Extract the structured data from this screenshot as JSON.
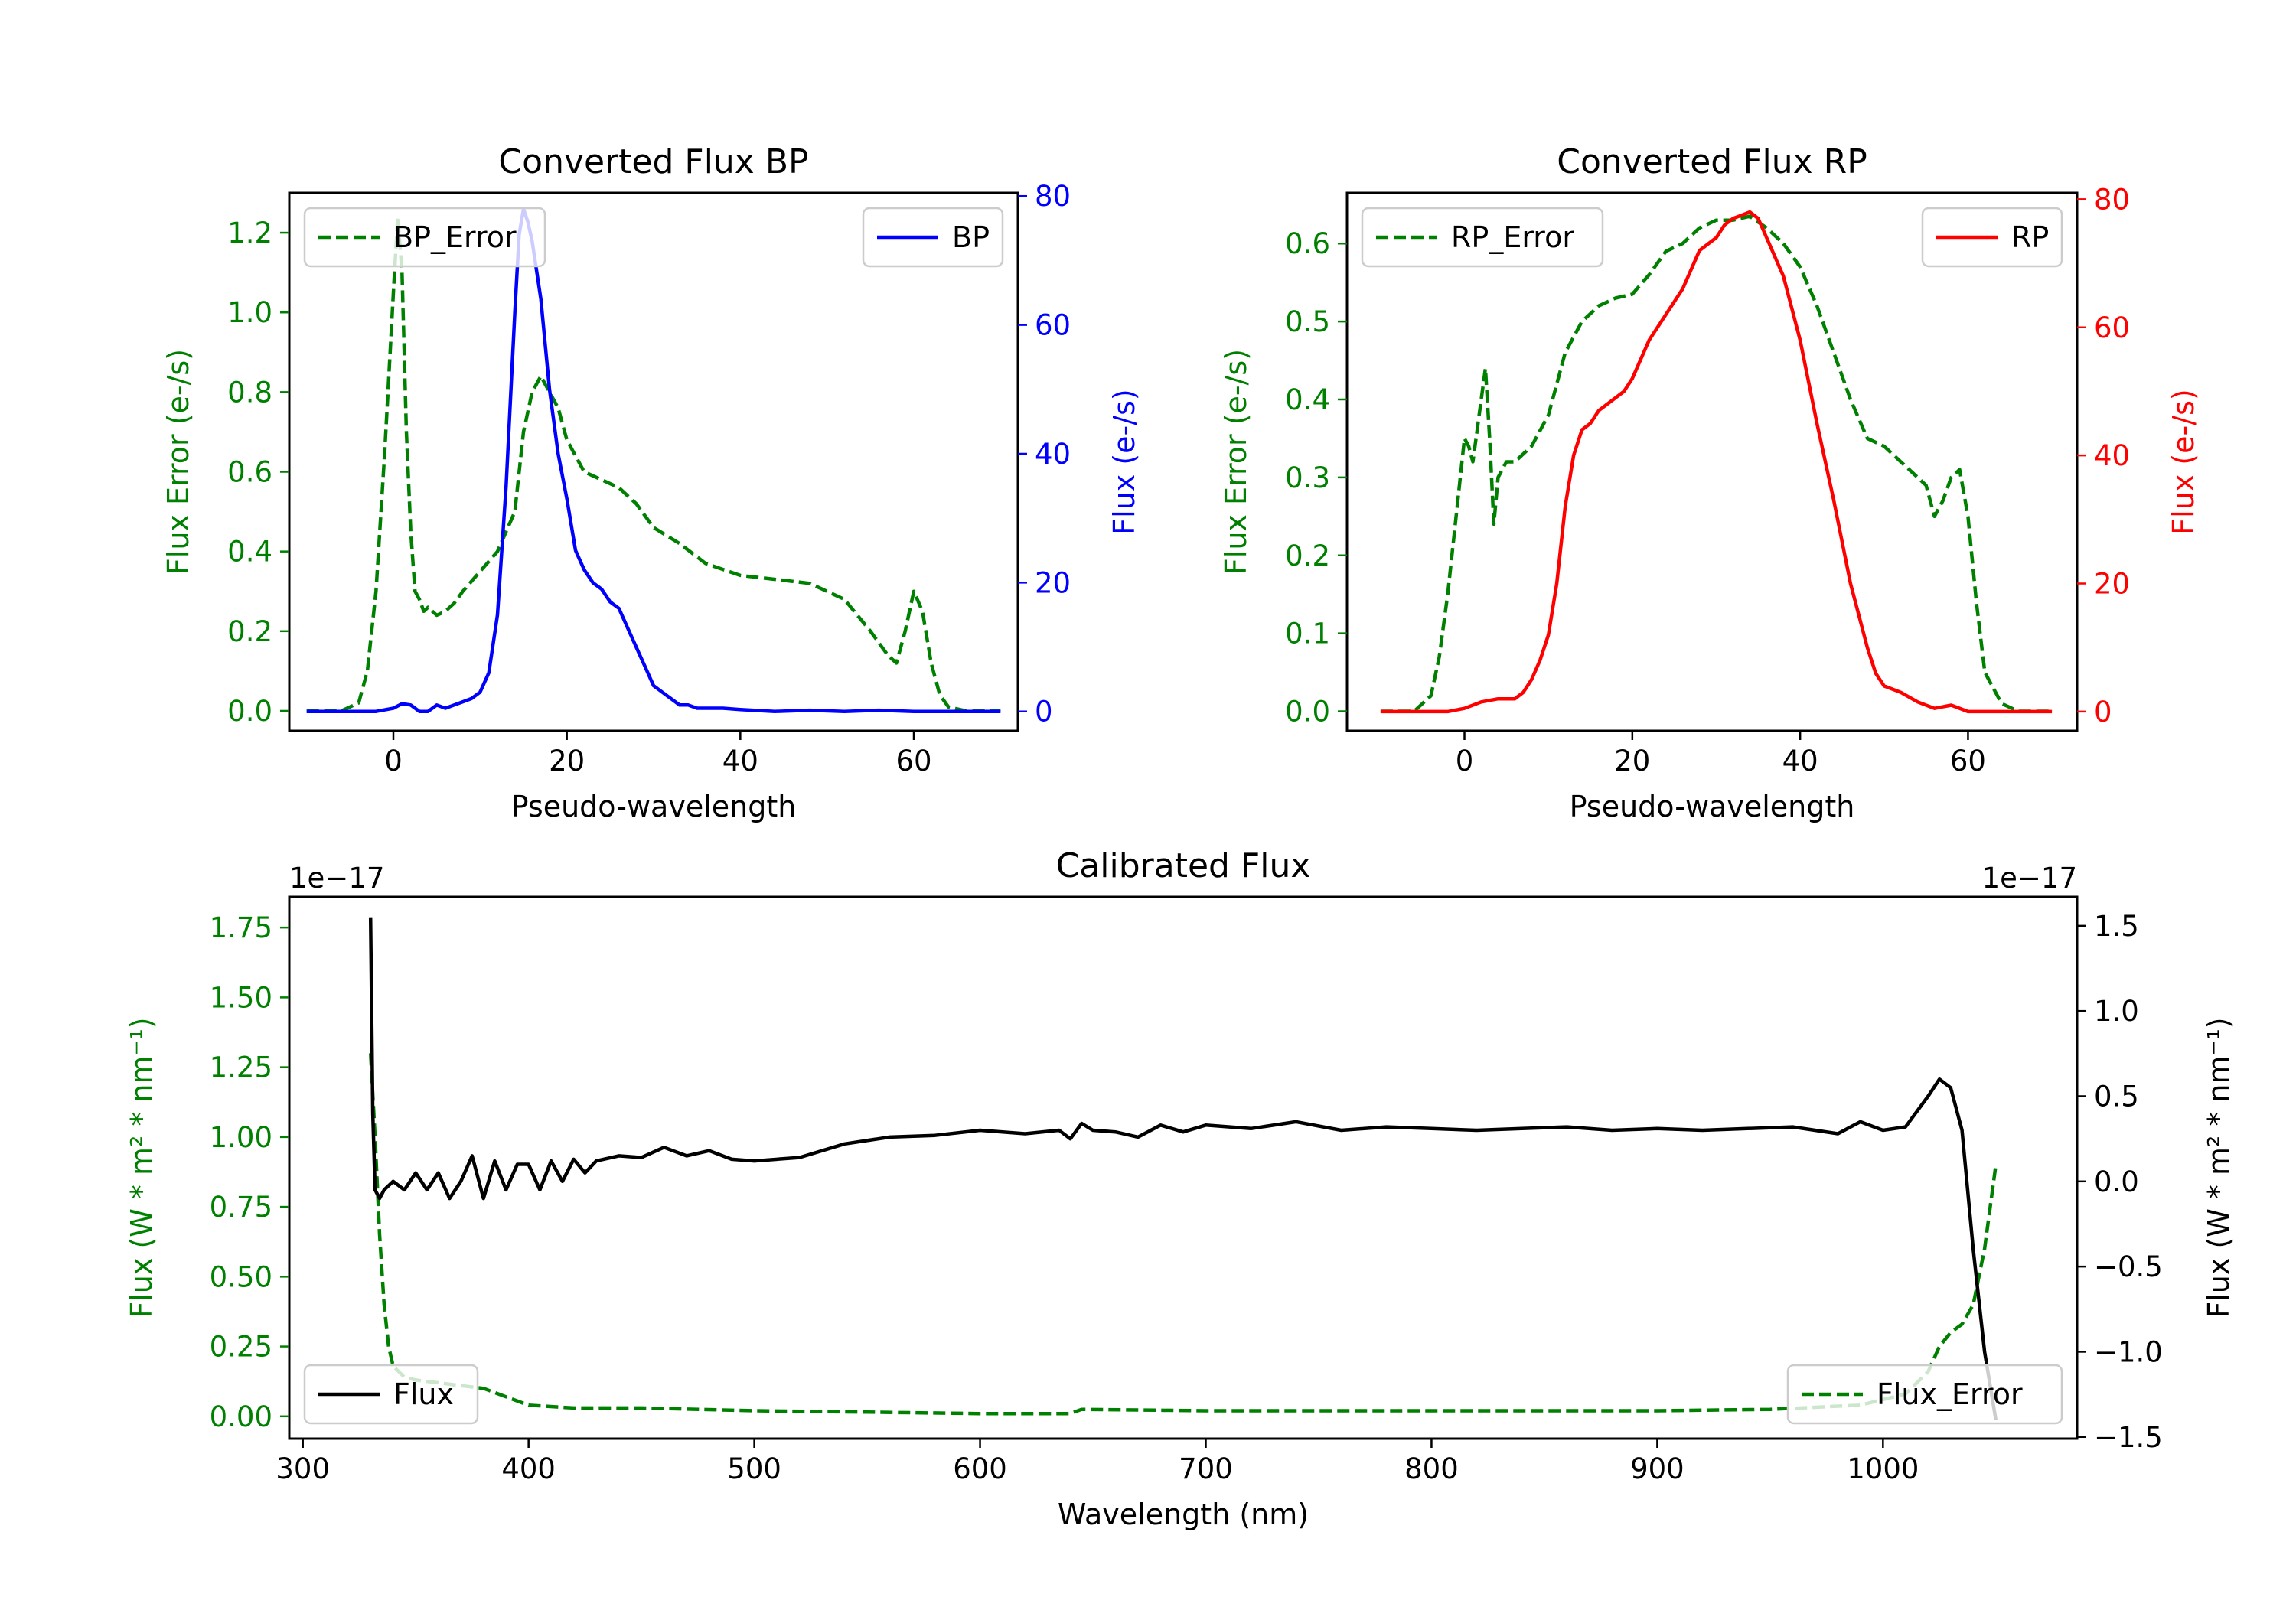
{
  "colors": {
    "green": "#008000",
    "blue": "#0000ff",
    "red": "#ff0000",
    "black": "#000000"
  },
  "chart_data": [
    {
      "id": "bp",
      "type": "line",
      "title": "Converted Flux BP",
      "xlabel": "Pseudo-wavelength",
      "ylabel_left": "Flux Error (e-/s)",
      "ylabel_right": "Flux (e-/s)",
      "xlim": [
        -12,
        72
      ],
      "ylim_left": [
        -0.05,
        1.3
      ],
      "ylim_right": [
        -3,
        80.5
      ],
      "xticks": [
        0,
        20,
        40,
        60
      ],
      "xtick_labels": [
        "0",
        "20",
        "40",
        "60"
      ],
      "yticks_left": [
        0.0,
        0.2,
        0.4,
        0.6,
        0.8,
        1.0,
        1.2
      ],
      "ytick_labels_left": [
        "0.0",
        "0.2",
        "0.4",
        "0.6",
        "0.8",
        "1.0",
        "1.2"
      ],
      "yticks_right": [
        0,
        20,
        40,
        60,
        80
      ],
      "ytick_labels_right": [
        "0",
        "20",
        "40",
        "60",
        "80"
      ],
      "left_axis_color": "#008000",
      "right_axis_color": "#0000ff",
      "legend_left": {
        "label": "BP_Error",
        "position": "upper left"
      },
      "legend_right": {
        "label": "BP",
        "position": "upper right"
      },
      "series": [
        {
          "name": "BP_Error",
          "axis": "left",
          "style": "dashed",
          "color": "#008000",
          "x": [
            -10,
            -6,
            -4,
            -3,
            -2,
            -1,
            0,
            0.5,
            1,
            1.5,
            2,
            2.5,
            3,
            3.5,
            4,
            5,
            6,
            7,
            8,
            10,
            12,
            14,
            15,
            16,
            17,
            18,
            19,
            20,
            22,
            24,
            26,
            28,
            30,
            33,
            36,
            40,
            44,
            48,
            52,
            55,
            57,
            58,
            59,
            60,
            61,
            62,
            63,
            64,
            66,
            68,
            70
          ],
          "y": [
            0.0,
            0.0,
            0.02,
            0.1,
            0.3,
            0.65,
            1.05,
            1.24,
            1.1,
            0.7,
            0.45,
            0.3,
            0.28,
            0.25,
            0.26,
            0.24,
            0.25,
            0.27,
            0.3,
            0.35,
            0.4,
            0.5,
            0.7,
            0.8,
            0.84,
            0.8,
            0.76,
            0.68,
            0.6,
            0.58,
            0.56,
            0.52,
            0.46,
            0.42,
            0.37,
            0.34,
            0.33,
            0.32,
            0.28,
            0.2,
            0.14,
            0.12,
            0.2,
            0.3,
            0.25,
            0.12,
            0.04,
            0.01,
            0.0,
            0.0,
            0.0
          ]
        },
        {
          "name": "BP",
          "axis": "right",
          "style": "solid",
          "color": "#0000ff",
          "x": [
            -10,
            -6,
            -4,
            -2,
            0,
            1,
            2,
            3,
            4,
            5,
            6,
            7,
            8,
            9,
            10,
            11,
            12,
            13,
            14,
            14.5,
            15,
            15.5,
            16,
            17,
            18,
            19,
            20,
            21,
            22,
            23,
            24,
            25,
            26,
            27,
            28,
            29,
            30,
            31,
            32,
            33,
            34,
            35,
            36,
            38,
            40,
            44,
            48,
            52,
            56,
            60,
            64,
            66,
            70
          ],
          "y": [
            0,
            0,
            0,
            0,
            0.5,
            1.2,
            1,
            0,
            0,
            1,
            0.5,
            1,
            1.5,
            2,
            3,
            6,
            15,
            35,
            62,
            74,
            78,
            76,
            73,
            64,
            50,
            40,
            33,
            25,
            22,
            20,
            19,
            17,
            16,
            13,
            10,
            7,
            4,
            3,
            2,
            1,
            1,
            0.5,
            0.5,
            0.5,
            0.3,
            0,
            0.2,
            0,
            0.2,
            0,
            0,
            0,
            0
          ]
        }
      ]
    },
    {
      "id": "rp",
      "type": "line",
      "title": "Converted Flux RP",
      "xlabel": "Pseudo-wavelength",
      "ylabel_left": "Flux Error (e-/s)",
      "ylabel_right": "Flux (e-/s)",
      "xlim": [
        -14,
        73
      ],
      "ylim_left": [
        -0.025,
        0.665
      ],
      "ylim_right": [
        -3,
        81
      ],
      "xticks": [
        0,
        20,
        40,
        60
      ],
      "xtick_labels": [
        "0",
        "20",
        "40",
        "60"
      ],
      "yticks_left": [
        0.0,
        0.1,
        0.2,
        0.3,
        0.4,
        0.5,
        0.6
      ],
      "ytick_labels_left": [
        "0.0",
        "0.1",
        "0.2",
        "0.3",
        "0.4",
        "0.5",
        "0.6"
      ],
      "yticks_right": [
        0,
        20,
        40,
        60,
        80
      ],
      "ytick_labels_right": [
        "0",
        "20",
        "40",
        "60",
        "80"
      ],
      "left_axis_color": "#008000",
      "right_axis_color": "#ff0000",
      "legend_left": {
        "label": "RP_Error",
        "position": "upper left"
      },
      "legend_right": {
        "label": "RP",
        "position": "upper right"
      },
      "series": [
        {
          "name": "RP_Error",
          "axis": "left",
          "style": "dashed",
          "color": "#008000",
          "x": [
            -10,
            -6,
            -4,
            -3,
            -2,
            -1,
            0,
            0.5,
            1,
            1.5,
            2,
            2.5,
            3,
            3.5,
            4,
            5,
            6,
            8,
            10,
            12,
            14,
            16,
            18,
            20,
            22,
            24,
            26,
            28,
            30,
            32,
            34,
            36,
            38,
            40,
            42,
            44,
            46,
            48,
            50,
            52,
            54,
            55,
            56,
            57,
            58,
            59,
            60,
            61,
            62,
            64,
            66,
            70
          ],
          "y": [
            0.0,
            0.0,
            0.02,
            0.07,
            0.15,
            0.25,
            0.35,
            0.34,
            0.32,
            0.36,
            0.4,
            0.44,
            0.35,
            0.24,
            0.3,
            0.32,
            0.32,
            0.34,
            0.38,
            0.46,
            0.5,
            0.52,
            0.53,
            0.535,
            0.56,
            0.59,
            0.6,
            0.62,
            0.63,
            0.63,
            0.635,
            0.62,
            0.6,
            0.57,
            0.52,
            0.46,
            0.4,
            0.35,
            0.34,
            0.32,
            0.3,
            0.29,
            0.25,
            0.27,
            0.3,
            0.31,
            0.25,
            0.14,
            0.05,
            0.01,
            0.0,
            0.0
          ]
        },
        {
          "name": "RP",
          "axis": "right",
          "style": "solid",
          "color": "#ff0000",
          "x": [
            -10,
            -6,
            -4,
            -2,
            0,
            2,
            4,
            6,
            7,
            8,
            9,
            10,
            11,
            12,
            13,
            14,
            15,
            16,
            17,
            18,
            19,
            20,
            22,
            24,
            26,
            28,
            30,
            31,
            32,
            33,
            34,
            35,
            36,
            38,
            40,
            42,
            44,
            46,
            48,
            49,
            50,
            52,
            54,
            56,
            58,
            60,
            64,
            70
          ],
          "y": [
            0,
            0,
            0,
            0,
            0.5,
            1.5,
            2,
            2,
            3,
            5,
            8,
            12,
            20,
            32,
            40,
            44,
            45,
            47,
            48,
            49,
            50,
            52,
            58,
            62,
            66,
            72,
            74,
            76,
            77,
            77.5,
            78,
            77,
            74,
            68,
            58,
            45,
            33,
            20,
            10,
            6,
            4,
            3,
            1.5,
            0.5,
            1,
            0,
            0,
            0
          ]
        }
      ]
    },
    {
      "id": "calibrated",
      "type": "line",
      "title": "Calibrated Flux",
      "xlabel": "Wavelength (nm)",
      "ylabel_left": "Flux (W * m² * nm⁻¹)",
      "ylabel_right": "Flux (W * m² * nm⁻¹)",
      "offset_left": "1e−17",
      "offset_right": "1e−17",
      "xlim": [
        294,
        1086
      ],
      "ylim_left": [
        -0.08,
        1.86
      ],
      "ylim_right": [
        -1.51,
        1.67
      ],
      "xticks": [
        300,
        400,
        500,
        600,
        700,
        800,
        900,
        1000
      ],
      "xtick_labels": [
        "300",
        "400",
        "500",
        "600",
        "700",
        "800",
        "900",
        "1000"
      ],
      "yticks_left": [
        0.0,
        0.25,
        0.5,
        0.75,
        1.0,
        1.25,
        1.5,
        1.75
      ],
      "ytick_labels_left": [
        "0.00",
        "0.25",
        "0.50",
        "0.75",
        "1.00",
        "1.25",
        "1.50",
        "1.75"
      ],
      "yticks_right": [
        -1.5,
        -1.0,
        -0.5,
        0.0,
        0.5,
        1.0,
        1.5
      ],
      "ytick_labels_right": [
        "−1.5",
        "−1.0",
        "−0.5",
        "0.0",
        "0.5",
        "1.0",
        "1.5"
      ],
      "left_axis_color": "#008000",
      "right_axis_color": "#000000",
      "legend_left": {
        "label": "Flux",
        "position": "lower left"
      },
      "legend_right": {
        "label": "Flux_Error",
        "position": "lower right"
      },
      "series": [
        {
          "name": "Flux_Error",
          "axis": "left",
          "style": "dashed",
          "color": "#008000",
          "x": [
            330,
            332,
            334,
            336,
            338,
            340,
            345,
            350,
            360,
            370,
            380,
            390,
            400,
            420,
            450,
            500,
            550,
            600,
            640,
            645,
            700,
            800,
            900,
            950,
            990,
            1010,
            1020,
            1025,
            1030,
            1035,
            1040,
            1045,
            1050
          ],
          "y": [
            1.3,
            1.0,
            0.65,
            0.4,
            0.25,
            0.18,
            0.14,
            0.13,
            0.12,
            0.11,
            0.1,
            0.07,
            0.04,
            0.03,
            0.03,
            0.02,
            0.015,
            0.01,
            0.01,
            0.025,
            0.02,
            0.02,
            0.02,
            0.025,
            0.04,
            0.08,
            0.16,
            0.25,
            0.3,
            0.33,
            0.4,
            0.6,
            0.9
          ]
        },
        {
          "name": "Flux",
          "axis": "right",
          "style": "solid",
          "color": "#000000",
          "x": [
            330,
            331,
            332,
            334,
            336,
            340,
            345,
            350,
            355,
            360,
            365,
            370,
            375,
            380,
            385,
            390,
            395,
            400,
            405,
            410,
            415,
            420,
            425,
            430,
            440,
            450,
            460,
            470,
            480,
            490,
            500,
            520,
            540,
            560,
            580,
            600,
            620,
            635,
            640,
            645,
            650,
            660,
            670,
            680,
            690,
            700,
            720,
            740,
            760,
            780,
            800,
            820,
            840,
            860,
            880,
            900,
            920,
            940,
            960,
            980,
            990,
            1000,
            1010,
            1020,
            1025,
            1030,
            1035,
            1040,
            1045,
            1050
          ],
          "y": [
            1.55,
            0.4,
            -0.05,
            -0.1,
            -0.05,
            0.0,
            -0.05,
            0.05,
            -0.05,
            0.05,
            -0.1,
            0.0,
            0.15,
            -0.1,
            0.12,
            -0.05,
            0.1,
            0.1,
            -0.05,
            0.12,
            0.0,
            0.13,
            0.05,
            0.12,
            0.15,
            0.14,
            0.2,
            0.15,
            0.18,
            0.13,
            0.12,
            0.14,
            0.22,
            0.26,
            0.27,
            0.3,
            0.28,
            0.3,
            0.25,
            0.34,
            0.3,
            0.29,
            0.26,
            0.33,
            0.29,
            0.33,
            0.31,
            0.35,
            0.3,
            0.32,
            0.31,
            0.3,
            0.31,
            0.32,
            0.3,
            0.31,
            0.3,
            0.31,
            0.32,
            0.28,
            0.35,
            0.3,
            0.32,
            0.5,
            0.6,
            0.55,
            0.3,
            -0.4,
            -1.0,
            -1.4
          ]
        }
      ]
    }
  ]
}
